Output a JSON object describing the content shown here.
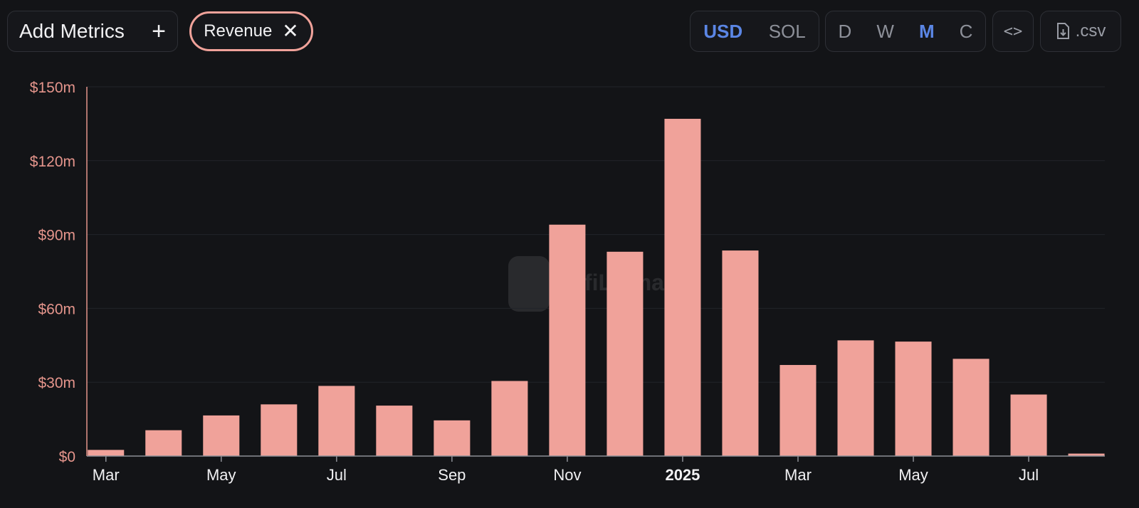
{
  "toolbar": {
    "add_metrics_label": "Add Metrics",
    "add_icon": "plus-icon",
    "metric_chip_label": "Revenue",
    "remove_icon": "close-icon",
    "currency_options": [
      "USD",
      "SOL"
    ],
    "currency_selected": "USD",
    "period_options": [
      "D",
      "W",
      "M",
      "C"
    ],
    "period_selected": "M",
    "embed_icon": "code-icon",
    "csv_label": ".csv",
    "csv_icon": "download-file-icon"
  },
  "colors": {
    "background": "#131417",
    "bar": "#f0a29a",
    "axis_text": "#e5958c",
    "accent": "#5b86e5"
  },
  "chart_data": {
    "type": "bar",
    "title": "",
    "xlabel": "",
    "ylabel": "",
    "ylim": [
      0,
      150
    ],
    "y_unit": "$m",
    "y_ticks": [
      "$0",
      "$30m",
      "$60m",
      "$90m",
      "$120m",
      "$150m"
    ],
    "y_tick_values": [
      0,
      30,
      60,
      90,
      120,
      150
    ],
    "categories": [
      "2024-03",
      "2024-04",
      "2024-05",
      "2024-06",
      "2024-07",
      "2024-08",
      "2024-09",
      "2024-10",
      "2024-11",
      "2024-12",
      "2025-01",
      "2025-02",
      "2025-03",
      "2025-04",
      "2025-05",
      "2025-06",
      "2025-07",
      "2025-08"
    ],
    "x_tick_labels": [
      "Mar",
      "",
      "May",
      "",
      "Jul",
      "",
      "Sep",
      "",
      "Nov",
      "",
      "2025",
      "",
      "Mar",
      "",
      "May",
      "",
      "Jul",
      ""
    ],
    "values": [
      2.5,
      10.5,
      16.5,
      21,
      28.5,
      20.5,
      14.5,
      30.5,
      94,
      83,
      137,
      83.5,
      37,
      47,
      46.5,
      39.5,
      25,
      1
    ],
    "series": [
      {
        "name": "Revenue",
        "values": [
          2.5,
          10.5,
          16.5,
          21,
          28.5,
          20.5,
          14.5,
          30.5,
          94,
          83,
          137,
          83.5,
          37,
          47,
          46.5,
          39.5,
          25,
          1
        ]
      }
    ],
    "grid": true,
    "legend": "none"
  }
}
